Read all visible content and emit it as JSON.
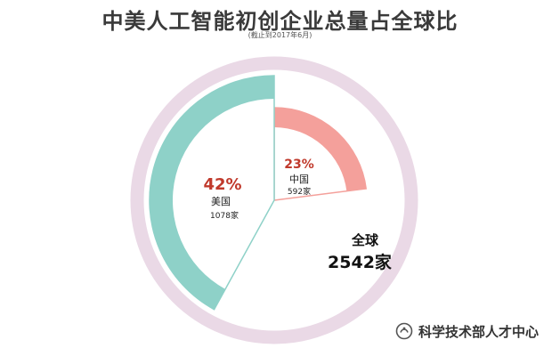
{
  "header": {
    "title": "中美人工智能初创企业总量占全球比",
    "subtitle": "(截止到2017年6月)"
  },
  "chart_data": {
    "type": "pie",
    "total": {
      "label": "全球",
      "value_text": "2542家",
      "value": 2542
    },
    "slices": [
      {
        "name": "中国",
        "percent": 23,
        "percent_text": "23%",
        "count": 592,
        "count_text": "592家",
        "color": "#f4a09b",
        "label_color": "#c0392b"
      },
      {
        "name": "美国",
        "percent": 42,
        "percent_text": "42%",
        "count": 1078,
        "count_text": "1078家",
        "color": "#8ed1c8",
        "label_color": "#c0392b"
      }
    ],
    "outer_ring_color": "#ead9e6"
  },
  "watermark": {
    "icon": "wechat-official-account-icon",
    "text": "科学技术部人才中心"
  }
}
